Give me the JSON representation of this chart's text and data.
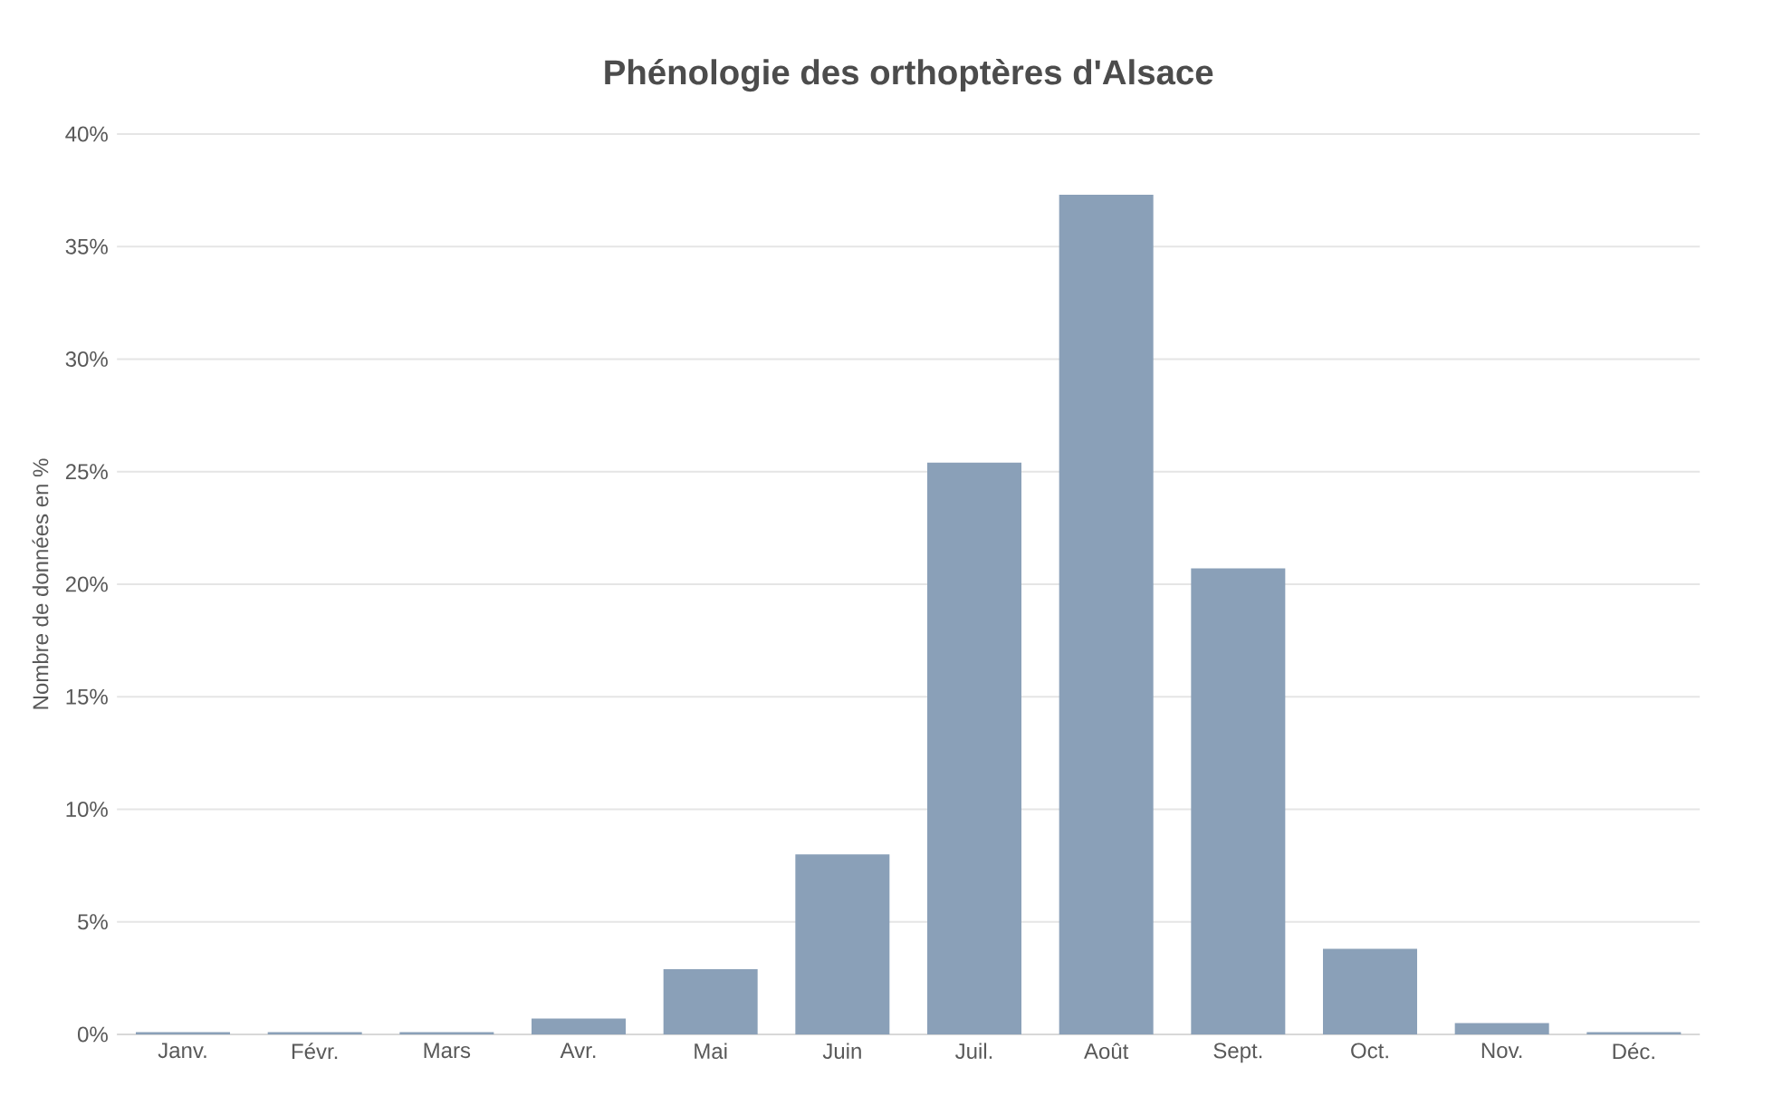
{
  "chart_data": {
    "type": "bar",
    "title": "Phénologie des orthoptères d'Alsace",
    "ylabel": "Nombre de données en %",
    "categories": [
      "Janv.",
      "Févr.",
      "Mars",
      "Avr.",
      "Mai",
      "Juin",
      "Juil.",
      "Août",
      "Sept.",
      "Oct.",
      "Nov.",
      "Déc."
    ],
    "values": [
      0.1,
      0.1,
      0.1,
      0.7,
      2.9,
      8.0,
      25.4,
      37.3,
      20.7,
      3.8,
      0.5,
      0.1
    ],
    "color": "#8aa0b8",
    "ylim": [
      0,
      40
    ],
    "yticks": [
      {
        "value": 0,
        "label": "0%"
      },
      {
        "value": 5,
        "label": "5%"
      },
      {
        "value": 10,
        "label": "10%"
      },
      {
        "value": 15,
        "label": "15%"
      },
      {
        "value": 20,
        "label": "20%"
      },
      {
        "value": 25,
        "label": "25%"
      },
      {
        "value": 30,
        "label": "30%"
      },
      {
        "value": 35,
        "label": "35%"
      },
      {
        "value": 40,
        "label": "40%"
      }
    ],
    "grid": "y"
  }
}
